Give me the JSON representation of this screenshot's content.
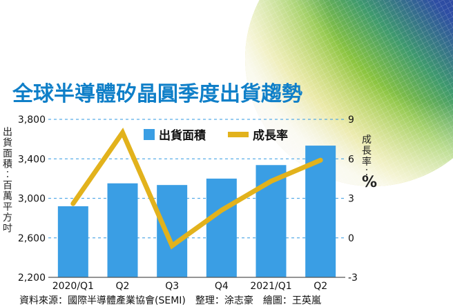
{
  "chart_data": {
    "type": "bar",
    "title": "全球半導體矽晶圓季度出貨趨勢",
    "categories": [
      "2020/Q1",
      "Q2",
      "Q3",
      "Q4",
      "2021/Q1",
      "Q2"
    ],
    "series": [
      {
        "name": "出貨面積",
        "type": "bar",
        "axis": "left",
        "color": "#3a9ee4",
        "values": [
          2920,
          3152,
          3135,
          3200,
          3337,
          3534
        ]
      },
      {
        "name": "成長率",
        "type": "line",
        "axis": "right",
        "color": "#e2b21c",
        "values": [
          2.6,
          8.0,
          -0.6,
          2.1,
          4.3,
          5.9
        ]
      }
    ],
    "ylabel": "出貨面積：百萬平方吋",
    "y2label": "成長率：%",
    "ylim": [
      2200,
      3800
    ],
    "y2lim": [
      -3,
      9
    ],
    "yticks": [
      "2,200",
      "2,600",
      "3,000",
      "3,400",
      "3,800"
    ],
    "y2ticks": [
      "-3",
      "0",
      "3",
      "6",
      "9"
    ],
    "grid": "dashed-horizontal",
    "legend": "top-center"
  },
  "source": "資料來源：國際半導體產業協會(SEMI)　整理：涂志豪　繪圖：王英嵐",
  "colors": {
    "title": "#0f7fc8",
    "wafer_blue": "#27339a",
    "wafer_green": "#7fc440",
    "wafer_yellow": "#e8d84a"
  }
}
